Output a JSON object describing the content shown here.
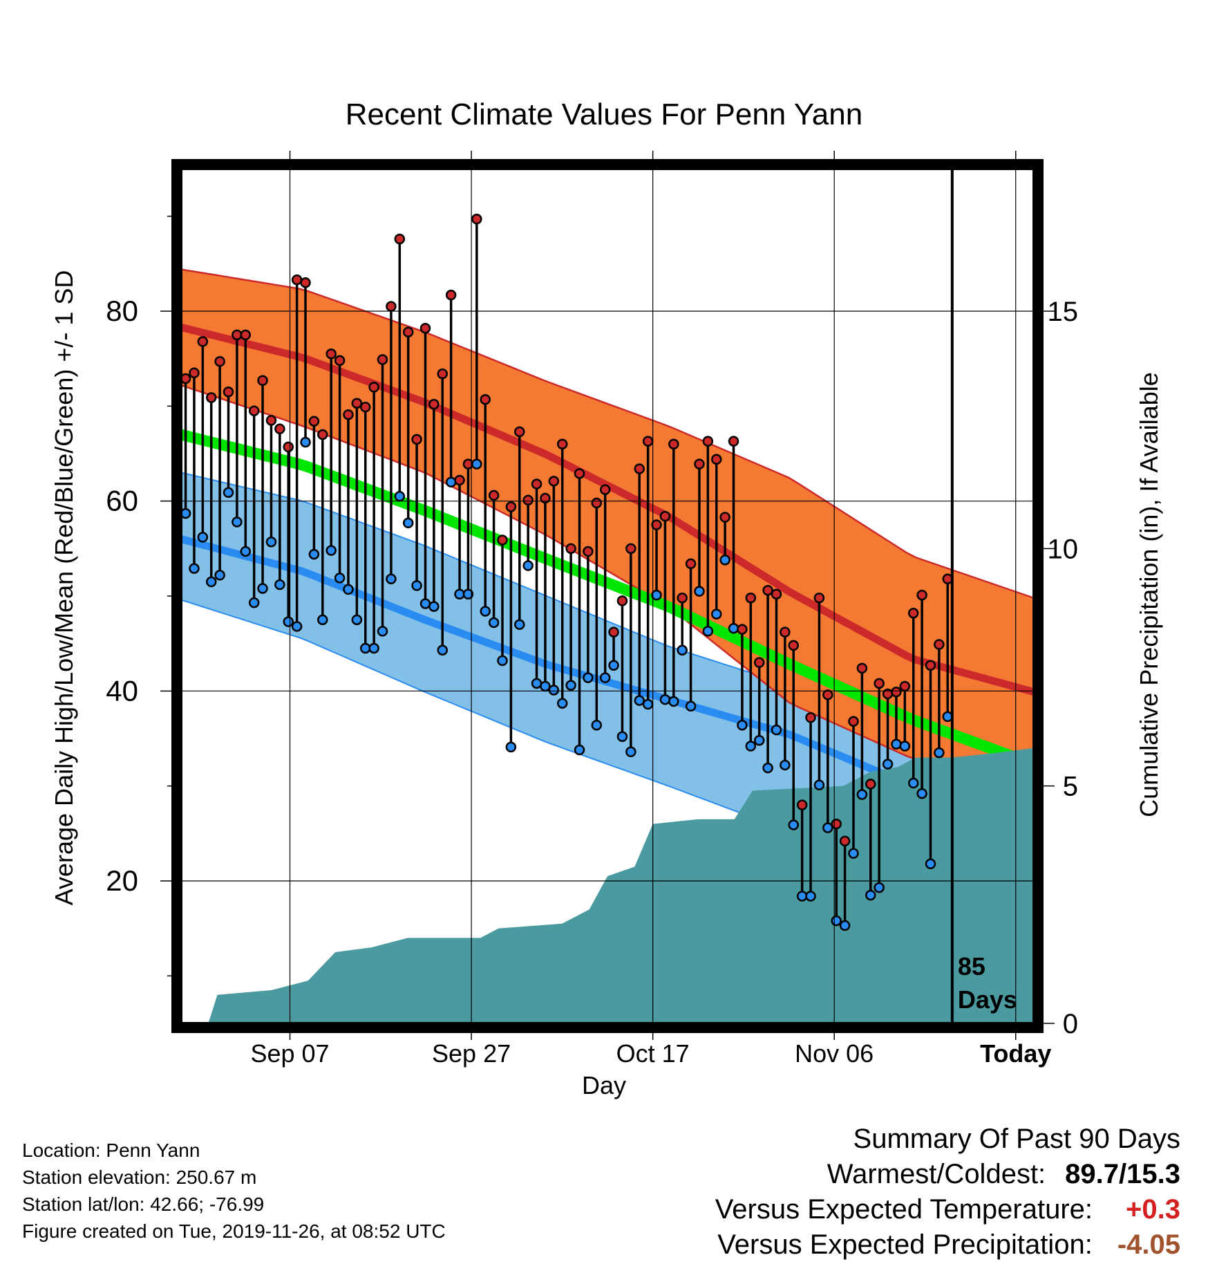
{
  "chart_data": {
    "type": "line",
    "title": "Recent Climate Values For Penn Yann",
    "xlabel": "Day",
    "ylabel": "Average Daily High/Low/Mean (Red/Blue/Green) +/- 1 SD",
    "ylabel_right": "Cumulative Precipitation (in), If Available",
    "x_ticks": [
      "Sep 07",
      "Sep 27",
      "Oct 17",
      "Nov 06",
      "Today"
    ],
    "y_ticks": [
      20,
      40,
      60,
      80
    ],
    "y2_ticks": [
      0,
      5,
      10,
      15
    ],
    "ylim": [
      5,
      95
    ],
    "y2lim": [
      0,
      18
    ],
    "grid": true,
    "days_label": "85\nDays",
    "x_range_days": [
      -85,
      9
    ],
    "normal_high_mean": [
      {
        "day": -85,
        "value": 78.3
      },
      {
        "day": -65,
        "value": 75.1
      },
      {
        "day": -45,
        "value": 70.4
      },
      {
        "day": -25,
        "value": 64.9
      },
      {
        "day": -5,
        "value": 58.4
      },
      {
        "day": 15,
        "value": 50.4
      },
      {
        "day": 35,
        "value": 43.4
      },
      {
        "day": 55,
        "value": 39.9
      }
    ],
    "normal_high_upper": [
      {
        "day": -85,
        "value": 84.4
      },
      {
        "day": -65,
        "value": 82.3
      },
      {
        "day": -45,
        "value": 77.8
      },
      {
        "day": -25,
        "value": 72.6
      },
      {
        "day": -5,
        "value": 67.9
      },
      {
        "day": 15,
        "value": 62.4
      },
      {
        "day": 35,
        "value": 54.2
      },
      {
        "day": 55,
        "value": 49.8
      }
    ],
    "normal_high_lower": [
      {
        "day": -85,
        "value": 72.2
      },
      {
        "day": -65,
        "value": 67.9
      },
      {
        "day": -45,
        "value": 63.0
      },
      {
        "day": -25,
        "value": 56.4
      },
      {
        "day": -5,
        "value": 48.9
      },
      {
        "day": 15,
        "value": 38.7
      },
      {
        "day": 35,
        "value": 32.9
      },
      {
        "day": 55,
        "value": 30.0
      }
    ],
    "normal_mean": [
      {
        "day": -85,
        "value": 67.0
      },
      {
        "day": -65,
        "value": 63.8
      },
      {
        "day": -45,
        "value": 59.0
      },
      {
        "day": -25,
        "value": 53.9
      },
      {
        "day": -5,
        "value": 48.9
      },
      {
        "day": 15,
        "value": 42.8
      },
      {
        "day": 35,
        "value": 37.0
      },
      {
        "day": 55,
        "value": 32.3
      }
    ],
    "normal_low_mean": [
      {
        "day": -85,
        "value": 56.0
      },
      {
        "day": -65,
        "value": 52.6
      },
      {
        "day": -45,
        "value": 47.5
      },
      {
        "day": -25,
        "value": 42.8
      },
      {
        "day": -5,
        "value": 39.1
      },
      {
        "day": 15,
        "value": 35.4
      },
      {
        "day": 35,
        "value": 30.0
      },
      {
        "day": 55,
        "value": 25.0
      }
    ],
    "normal_low_upper": [
      {
        "day": -85,
        "value": 63.0
      },
      {
        "day": -65,
        "value": 60.0
      },
      {
        "day": -45,
        "value": 55.3
      },
      {
        "day": -25,
        "value": 50.0
      },
      {
        "day": -5,
        "value": 44.7
      },
      {
        "day": 15,
        "value": 40.6
      },
      {
        "day": 35,
        "value": 38.6
      },
      {
        "day": 55,
        "value": 35.0
      }
    ],
    "normal_low_lower": [
      {
        "day": -85,
        "value": 49.6
      },
      {
        "day": -65,
        "value": 45.5
      },
      {
        "day": -45,
        "value": 39.9
      },
      {
        "day": -25,
        "value": 34.6
      },
      {
        "day": -5,
        "value": 30.0
      },
      {
        "day": 15,
        "value": 25.2
      },
      {
        "day": 35,
        "value": 20.2
      },
      {
        "day": 55,
        "value": 15.0
      }
    ],
    "daily_high": [
      72.9,
      73.5,
      76.8,
      70.9,
      74.7,
      71.5,
      77.5,
      77.5,
      69.5,
      72.7,
      68.5,
      67.6,
      65.7,
      83.3,
      83.0,
      68.4,
      67.0,
      75.5,
      74.8,
      69.1,
      70.3,
      69.9,
      72.0,
      74.9,
      80.5,
      87.6,
      77.8,
      66.5,
      78.2,
      70.2,
      73.4,
      81.7,
      62.2,
      63.9,
      89.7,
      70.7,
      60.6,
      55.9,
      59.4,
      67.3,
      60.1,
      61.8,
      60.3,
      62.1,
      66.0,
      55.0,
      62.9,
      54.7,
      59.8,
      61.2,
      46.2,
      49.5,
      55.0,
      63.4,
      66.3,
      57.5,
      58.4,
      66.0,
      49.8,
      53.4,
      63.9,
      66.3,
      64.4,
      58.3,
      66.3,
      46.5,
      49.8,
      43.0,
      50.6,
      50.2,
      46.2,
      44.8,
      28.0,
      37.2,
      49.8,
      39.6,
      26.0,
      24.2,
      36.8,
      42.4,
      30.2,
      40.8,
      39.7,
      39.9,
      40.5,
      48.2,
      50.1,
      42.7,
      44.9,
      51.8
    ],
    "daily_low": [
      58.7,
      52.9,
      56.2,
      51.5,
      52.2,
      60.9,
      57.8,
      54.7,
      49.3,
      50.8,
      55.7,
      51.2,
      47.3,
      46.8,
      66.2,
      54.4,
      47.5,
      54.8,
      51.9,
      50.7,
      47.5,
      44.5,
      44.5,
      46.3,
      51.8,
      60.5,
      57.7,
      51.1,
      49.2,
      48.9,
      44.3,
      62.0,
      50.2,
      50.2,
      63.9,
      48.4,
      47.2,
      43.2,
      34.1,
      47.0,
      53.2,
      40.8,
      40.5,
      40.1,
      38.7,
      40.6,
      33.8,
      41.4,
      36.4,
      41.4,
      42.7,
      35.2,
      33.6,
      39.0,
      38.6,
      50.1,
      39.1,
      38.9,
      44.3,
      38.4,
      50.5,
      46.3,
      48.1,
      53.8,
      46.6,
      36.4,
      34.2,
      34.8,
      31.9,
      35.9,
      32.2,
      25.9,
      18.4,
      18.4,
      30.1,
      25.6,
      15.8,
      15.3,
      22.9,
      29.1,
      18.5,
      19.3,
      32.3,
      34.4,
      34.2,
      30.3,
      29.2,
      21.8,
      33.5,
      37.3
    ],
    "precip_cumulative": [
      {
        "day": -85,
        "value": 0.0
      },
      {
        "day": -82,
        "value": 0.0
      },
      {
        "day": -81,
        "value": 0.6
      },
      {
        "day": -75,
        "value": 0.7
      },
      {
        "day": -71,
        "value": 0.9
      },
      {
        "day": -68,
        "value": 1.5
      },
      {
        "day": -64,
        "value": 1.6
      },
      {
        "day": -60,
        "value": 1.8
      },
      {
        "day": -52,
        "value": 1.8
      },
      {
        "day": -50,
        "value": 2.0
      },
      {
        "day": -43,
        "value": 2.1
      },
      {
        "day": -40,
        "value": 2.4
      },
      {
        "day": -38,
        "value": 3.1
      },
      {
        "day": -35,
        "value": 3.3
      },
      {
        "day": -33,
        "value": 4.2
      },
      {
        "day": -28,
        "value": 4.3
      },
      {
        "day": -24,
        "value": 4.3
      },
      {
        "day": -22,
        "value": 4.9
      },
      {
        "day": -12,
        "value": 5.0
      },
      {
        "day": -9,
        "value": 5.3
      },
      {
        "day": -6,
        "value": 5.4
      },
      {
        "day": -4,
        "value": 5.6
      },
      {
        "day": 0,
        "value": 5.6
      },
      {
        "day": 5,
        "value": 5.7
      },
      {
        "day": 10,
        "value": 5.8
      },
      {
        "day": 15,
        "value": 5.9
      },
      {
        "day": 20,
        "value": 6.1
      },
      {
        "day": 22,
        "value": 6.2
      },
      {
        "day": 55,
        "value": 6.2
      }
    ]
  },
  "info": {
    "location": "Location: Penn Yann",
    "elevation": "Station elevation: 250.67 m",
    "latlon": "Station lat/lon: 42.66; -76.99",
    "created": "Figure created on Tue, 2019-11-26, at 08:52 UTC"
  },
  "summary": {
    "heading": "Summary Of Past 90 Days",
    "warm_cold_label": "Warmest/Coldest:",
    "warm_cold_value": "89.7/15.3",
    "temp_label": "Versus Expected Temperature:",
    "temp_value": "+0.3",
    "precip_label": "Versus Expected Precipitation:",
    "precip_value": "-4.05"
  },
  "colors": {
    "high_band": "#f47a33",
    "high_mean": "#cc2a2a",
    "low_band": "#82c0e8",
    "low_mean": "#2a8cf0",
    "mean": "#00e600",
    "precip": "#4a9aa0",
    "high_dot": "#cc2a2a",
    "low_dot": "#2a8cf0",
    "temp_value": "#d42020",
    "precip_value": "#a0522d"
  }
}
